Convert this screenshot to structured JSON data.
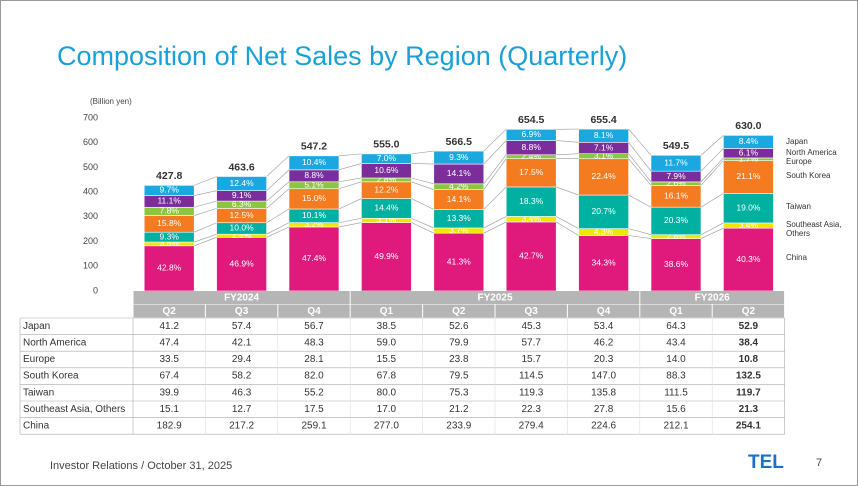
{
  "chart_data": {
    "type": "stacked-bar",
    "title": "Composition of Net Sales by Region (Quarterly)",
    "y_unit": "(Billion yen)",
    "ylim": [
      0,
      700
    ],
    "yticks": [
      0,
      100,
      200,
      300,
      400,
      500,
      600,
      700
    ],
    "groups": [
      {
        "label": "FY2024",
        "count": 3
      },
      {
        "label": "FY2025",
        "count": 4
      },
      {
        "label": "FY2026",
        "count": 2
      }
    ],
    "categories": [
      "Q2",
      "Q3",
      "Q4",
      "Q1",
      "Q2",
      "Q3",
      "Q4",
      "Q1",
      "Q2"
    ],
    "totals": [
      "427.8",
      "463.6",
      "547.2",
      "555.0",
      "566.5",
      "654.5",
      "655.4",
      "549.5",
      "630.0"
    ],
    "series": [
      {
        "name": "Japan",
        "color": "#1ba8e0",
        "values": [
          41.2,
          57.4,
          56.7,
          38.5,
          52.6,
          45.3,
          53.4,
          64.3,
          52.9
        ],
        "value_labels": [
          "41.2",
          "57.4",
          "56.7",
          "38.5",
          "52.6",
          "45.3",
          "53.4",
          "64.3",
          "52.9"
        ],
        "share_labels": [
          "9.7%",
          "12.4%",
          "10.4%",
          "7.0%",
          "9.3%",
          "6.9%",
          "8.1%",
          "11.7%",
          "8.4%"
        ]
      },
      {
        "name": "North America",
        "color": "#7b2d9b",
        "values": [
          47.4,
          42.1,
          48.3,
          59.0,
          79.9,
          57.7,
          46.2,
          43.4,
          38.4
        ],
        "value_labels": [
          "47.4",
          "42.1",
          "48.3",
          "59.0",
          "79.9",
          "57.7",
          "46.2",
          "43.4",
          "38.4"
        ],
        "share_labels": [
          "11.1%",
          "9.1%",
          "8.8%",
          "10.6%",
          "14.1%",
          "8.8%",
          "7.1%",
          "7.9%",
          "6.1%"
        ]
      },
      {
        "name": "Europe",
        "color": "#8cc63f",
        "values": [
          33.5,
          29.4,
          28.1,
          15.5,
          23.8,
          15.7,
          20.3,
          14.0,
          10.8
        ],
        "value_labels": [
          "33.5",
          "29.4",
          "28.1",
          "15.5",
          "23.8",
          "15.7",
          "20.3",
          "14.0",
          "10.8"
        ],
        "share_labels": [
          "7.8%",
          "6.3%",
          "5.1%",
          "2.8%",
          "4.2%",
          "2.4%",
          "3.1%",
          "2.6%",
          "1.7%"
        ]
      },
      {
        "name": "South Korea",
        "color": "#f47b20",
        "values": [
          67.4,
          58.2,
          82.0,
          67.8,
          79.5,
          114.5,
          147.0,
          88.3,
          132.5
        ],
        "value_labels": [
          "67.4",
          "58.2",
          "82.0",
          "67.8",
          "79.5",
          "114.5",
          "147.0",
          "88.3",
          "132.5"
        ],
        "share_labels": [
          "15.8%",
          "12.5%",
          "15.0%",
          "12.2%",
          "14.1%",
          "17.5%",
          "22.4%",
          "16.1%",
          "21.1%"
        ]
      },
      {
        "name": "Taiwan",
        "color": "#00b0a0",
        "values": [
          39.9,
          46.3,
          55.2,
          80.0,
          75.3,
          119.3,
          135.8,
          111.5,
          119.7
        ],
        "value_labels": [
          "39.9",
          "46.3",
          "55.2",
          "80.0",
          "75.3",
          "119.3",
          "135.8",
          "111.5",
          "119.7"
        ],
        "share_labels": [
          "9.3%",
          "10.0%",
          "10.1%",
          "14.4%",
          "13.3%",
          "18.3%",
          "20.7%",
          "20.3%",
          "19.0%"
        ]
      },
      {
        "name": "Southeast Asia, Others",
        "color": "#f2e500",
        "values": [
          15.1,
          12.7,
          17.5,
          17.0,
          21.2,
          22.3,
          27.8,
          15.6,
          21.3
        ],
        "value_labels": [
          "15.1",
          "12.7",
          "17.5",
          "17.0",
          "21.2",
          "22.3",
          "27.8",
          "15.6",
          "21.3"
        ],
        "share_labels": [
          "3.5%",
          "2.8%",
          "3.2%",
          "3.1%",
          "3.7%",
          "3.4%",
          "4.3%",
          "2.8%",
          "3.4%"
        ]
      },
      {
        "name": "China",
        "color": "#e0197d",
        "values": [
          182.9,
          217.2,
          259.1,
          277.0,
          233.9,
          279.4,
          224.6,
          212.1,
          254.1
        ],
        "value_labels": [
          "182.9",
          "217.2",
          "259.1",
          "277.0",
          "233.9",
          "279.4",
          "224.6",
          "212.1",
          "254.1"
        ],
        "share_labels": [
          "42.8%",
          "46.9%",
          "47.4%",
          "49.9%",
          "41.3%",
          "42.7%",
          "34.3%",
          "38.6%",
          "40.3%"
        ]
      }
    ]
  },
  "footer": "Investor Relations / October 31, 2025",
  "logo": "TEL",
  "page_number": "7"
}
